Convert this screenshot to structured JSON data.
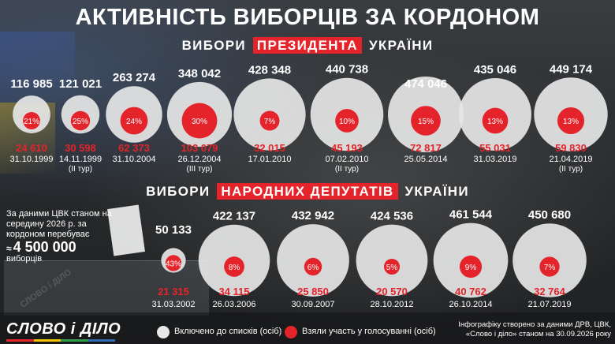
{
  "title": "АКТИВНІСТЬ ВИБОРЦІВ ЗА КОРДОНОМ",
  "sections": {
    "president": {
      "pre": "ВИБОРИ",
      "highlight": "ПРЕЗИДЕНТА",
      "post": "УКРАЇНИ"
    },
    "parliament": {
      "pre": "ВИБОРИ",
      "highlight": "НАРОДНИХ ДЕПУТАТІВ",
      "post": "УКРАЇНИ"
    }
  },
  "info": {
    "text": "За даними ЦВК станом на середину 2026 р. за кордоном перебуває",
    "approx": "≈",
    "big_number": "4 500 000",
    "tail": "виборців"
  },
  "legend": {
    "registered": "Включено до списків (осіб)",
    "voted": "Взяли участь у голосуванні (осіб)"
  },
  "logo": "СЛОВО і ДІЛО",
  "watermark": "СЛОВО і ДІЛО",
  "source": "Інфографіку створено за даними ДРВ, ЦВК, «Слово і діло» станом на 30.09.2026 року",
  "colors": {
    "accent": "#e4232a",
    "registered_circle": "#e6e6e6",
    "logo_bar": [
      "#e4232a",
      "#f2c500",
      "#2e9e48",
      "#2f6db5"
    ]
  },
  "chart_data": [
    {
      "type": "bubble",
      "title": "ВИБОРИ ПРЕЗИДЕНТА УКРАЇНИ",
      "series": [
        {
          "name": "Включено до списків (осіб)",
          "values": [
            116985,
            121021,
            263274,
            348042,
            428348,
            440738,
            474046,
            435046,
            449174
          ]
        },
        {
          "name": "Взяли участь у голосуванні (осіб)",
          "values": [
            24610,
            30598,
            62373,
            103079,
            32015,
            45193,
            72817,
            55031,
            59830
          ]
        }
      ],
      "points": [
        {
          "date": "31.10.1999",
          "note": "",
          "registered": "116 985",
          "voted": "24 610",
          "pct": "21%",
          "reg_value": 116985,
          "vote_value": 24610
        },
        {
          "date": "14.11.1999",
          "note": "(II тур)",
          "registered": "121 021",
          "voted": "30 598",
          "pct": "25%",
          "reg_value": 121021,
          "vote_value": 30598
        },
        {
          "date": "31.10.2004",
          "note": "",
          "registered": "263 274",
          "voted": "62 373",
          "pct": "24%",
          "reg_value": 263274,
          "vote_value": 62373
        },
        {
          "date": "26.12.2004",
          "note": "(III тур)",
          "registered": "348 042",
          "voted": "103 079",
          "pct": "30%",
          "reg_value": 348042,
          "vote_value": 103079
        },
        {
          "date": "17.01.2010",
          "note": "",
          "registered": "428 348",
          "voted": "32 015",
          "pct": "7%",
          "reg_value": 428348,
          "vote_value": 32015
        },
        {
          "date": "07.02.2010",
          "note": "(II тур)",
          "registered": "440 738",
          "voted": "45 193",
          "pct": "10%",
          "reg_value": 440738,
          "vote_value": 45193
        },
        {
          "date": "25.05.2014",
          "note": "",
          "registered": "474 046",
          "voted": "72 817",
          "pct": "15%",
          "reg_value": 474046,
          "vote_value": 72817
        },
        {
          "date": "31.03.2019",
          "note": "",
          "registered": "435 046",
          "voted": "55 031",
          "pct": "13%",
          "reg_value": 435046,
          "vote_value": 55031
        },
        {
          "date": "21.04.2019",
          "note": "(II тур)",
          "registered": "449 174",
          "voted": "59 830",
          "pct": "13%",
          "reg_value": 449174,
          "vote_value": 59830
        }
      ]
    },
    {
      "type": "bubble",
      "title": "ВИБОРИ НАРОДНИХ ДЕПУТАТІВ УКРАЇНИ",
      "series": [
        {
          "name": "Включено до списків (осіб)",
          "values": [
            50133,
            422137,
            432942,
            424536,
            461544,
            450680
          ]
        },
        {
          "name": "Взяли участь у голосуванні (осіб)",
          "values": [
            21315,
            34115,
            25850,
            20570,
            40762,
            32764
          ]
        }
      ],
      "points": [
        {
          "date": "31.03.2002",
          "note": "",
          "registered": "50 133",
          "voted": "21 315",
          "pct": "43%",
          "reg_value": 50133,
          "vote_value": 21315
        },
        {
          "date": "26.03.2006",
          "note": "",
          "registered": "422 137",
          "voted": "34 115",
          "pct": "8%",
          "reg_value": 422137,
          "vote_value": 34115
        },
        {
          "date": "30.09.2007",
          "note": "",
          "registered": "432 942",
          "voted": "25 850",
          "pct": "6%",
          "reg_value": 432942,
          "vote_value": 25850
        },
        {
          "date": "28.10.2012",
          "note": "",
          "registered": "424 536",
          "voted": "20 570",
          "pct": "5%",
          "reg_value": 424536,
          "vote_value": 20570
        },
        {
          "date": "26.10.2014",
          "note": "",
          "registered": "461 544",
          "voted": "40 762",
          "pct": "9%",
          "reg_value": 461544,
          "vote_value": 40762
        },
        {
          "date": "21.07.2019",
          "note": "",
          "registered": "450 680",
          "voted": "32 764",
          "pct": "7%",
          "reg_value": 450680,
          "vote_value": 32764
        }
      ]
    }
  ]
}
